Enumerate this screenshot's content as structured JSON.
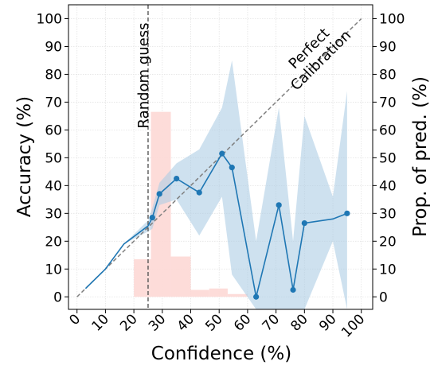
{
  "chart_data": {
    "type": "line",
    "xlabel": "Confidence (%)",
    "ylabel": "Accuracy (%)",
    "ylabel_right": "Prop. of pred. (%)",
    "xlim": [
      -3,
      104
    ],
    "ylim": [
      -4.5,
      105
    ],
    "x_ticks": [
      0,
      10,
      20,
      30,
      40,
      50,
      60,
      70,
      80,
      90,
      100
    ],
    "y_ticks": [
      0,
      10,
      20,
      30,
      40,
      50,
      60,
      70,
      80,
      90,
      100
    ],
    "grid": true,
    "annotations": {
      "random_guess": {
        "text": "Random guess",
        "x": 25
      },
      "perfect_calibration": {
        "text": [
          "Perfect",
          "Calibration"
        ]
      }
    },
    "diagonal": {
      "name": "Perfect Calibration",
      "x": [
        0,
        100
      ],
      "y": [
        0,
        100
      ]
    },
    "accuracy_line": {
      "x": [
        3,
        10,
        16.5,
        25,
        26.5,
        29,
        35,
        43,
        51,
        54.5,
        63,
        71,
        76,
        80,
        90,
        95
      ],
      "y": [
        3,
        10,
        19,
        25.5,
        28.5,
        37,
        42.5,
        37.5,
        51.5,
        46.5,
        0,
        33,
        2.5,
        26.5,
        28,
        30
      ]
    },
    "markers": {
      "x": [
        26.5,
        29,
        35,
        43,
        51,
        54.5,
        63,
        71,
        76,
        80,
        95
      ],
      "y": [
        28.5,
        37,
        42.5,
        37.5,
        51.5,
        46.5,
        0,
        33,
        2.5,
        26.5,
        30
      ]
    },
    "confidence_band": {
      "x": [
        3,
        10,
        16.5,
        25,
        26.5,
        29,
        35,
        43,
        51,
        54.5,
        63,
        71,
        76,
        80,
        90,
        95
      ],
      "upper": [
        3,
        10,
        19,
        27.5,
        32,
        41,
        48,
        53,
        68,
        85,
        20,
        68,
        20,
        65,
        36,
        74
      ],
      "lower": [
        3,
        10,
        19,
        23.5,
        24.5,
        33,
        35,
        22,
        36,
        8,
        -4.5,
        -4.5,
        -4.5,
        -4.5,
        20,
        -4.5
      ]
    },
    "histogram": {
      "bins": [
        [
          20,
          26
        ],
        [
          26,
          33
        ],
        [
          33,
          40
        ],
        [
          40,
          46.5
        ],
        [
          46.5,
          53
        ],
        [
          53,
          60
        ]
      ],
      "values": [
        13.5,
        66.5,
        14.5,
        2.5,
        3,
        1
      ]
    },
    "colors": {
      "line": "#1f77b4",
      "band": "#aecde5",
      "bars": "#fdd8d5",
      "diagonal": "#7f7f7f",
      "random_guess": "#555555",
      "grid": "#e3e3e3"
    }
  }
}
